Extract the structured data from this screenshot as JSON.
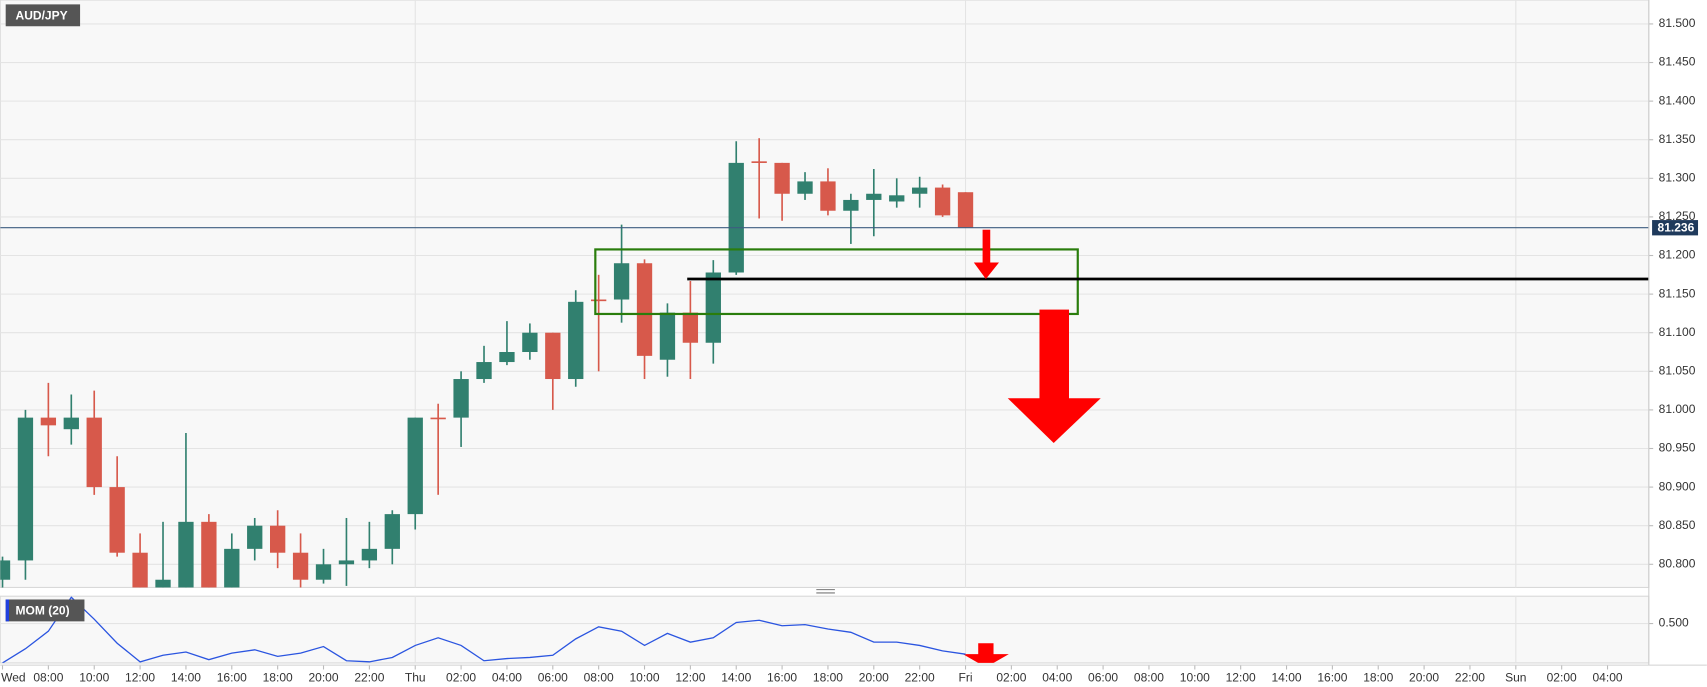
{
  "chart_data": {
    "type": "candlestick",
    "title": "AUD/JPY",
    "x": [
      6,
      7,
      8,
      9,
      10,
      11,
      12,
      13,
      14,
      15,
      16,
      17,
      18,
      19,
      20,
      21,
      22,
      23,
      24,
      25,
      26,
      27,
      28,
      29,
      30,
      31,
      32,
      33,
      34,
      35,
      36,
      37,
      38,
      39,
      40,
      41,
      42,
      43,
      44,
      45,
      46,
      47,
      48
    ],
    "open": [
      80.78,
      80.805,
      80.99,
      80.975,
      80.99,
      80.9,
      80.815,
      80.77,
      80.77,
      80.855,
      80.77,
      80.82,
      80.85,
      80.815,
      80.78,
      80.8,
      80.805,
      80.82,
      80.865,
      80.99,
      80.99,
      81.04,
      81.062,
      81.075,
      81.1,
      81.04,
      81.143,
      81.143,
      81.19,
      81.065,
      81.126,
      81.087,
      81.178,
      81.322,
      81.32,
      81.28,
      81.296,
      81.258,
      81.272,
      81.27,
      81.28,
      81.288,
      81.282
    ],
    "high": [
      80.81,
      81.0,
      81.035,
      81.02,
      81.025,
      80.94,
      80.84,
      80.855,
      80.97,
      80.865,
      80.84,
      80.86,
      80.87,
      80.84,
      80.82,
      80.86,
      80.855,
      80.87,
      80.99,
      81.008,
      81.05,
      81.083,
      81.115,
      81.112,
      81.1,
      81.155,
      81.175,
      81.24,
      81.195,
      81.138,
      81.167,
      81.194,
      81.348,
      81.352,
      81.32,
      81.308,
      81.313,
      81.28,
      81.312,
      81.3,
      81.302,
      81.292,
      81.282
    ],
    "low": [
      80.77,
      80.78,
      80.94,
      80.955,
      80.89,
      80.81,
      80.77,
      80.76,
      80.76,
      80.76,
      80.76,
      80.805,
      80.795,
      80.77,
      80.775,
      80.772,
      80.795,
      80.8,
      80.845,
      80.89,
      80.952,
      81.035,
      81.058,
      81.065,
      81.0,
      81.03,
      81.05,
      81.113,
      81.04,
      81.043,
      81.04,
      81.06,
      81.175,
      81.248,
      81.245,
      81.272,
      81.252,
      81.215,
      81.225,
      81.262,
      81.262,
      81.25,
      81.236
    ],
    "close": [
      80.805,
      80.99,
      80.98,
      80.99,
      80.9,
      80.815,
      80.77,
      80.78,
      80.855,
      80.77,
      80.82,
      80.85,
      80.815,
      80.78,
      80.8,
      80.805,
      80.82,
      80.865,
      80.99,
      80.988,
      81.04,
      81.062,
      81.075,
      81.1,
      81.04,
      81.14,
      81.142,
      81.19,
      81.07,
      81.126,
      81.087,
      81.178,
      81.32,
      81.32,
      81.28,
      81.296,
      81.258,
      81.272,
      81.28,
      81.278,
      81.288,
      81.252,
      81.236
    ],
    "up_color": "#31806f",
    "down_color": "#d7594b",
    "xlim": [
      5.9,
      77.8
    ],
    "xticks": [
      {
        "value": 6,
        "label": "Wed"
      },
      {
        "value": 8,
        "label": "08:00"
      },
      {
        "value": 10,
        "label": "10:00"
      },
      {
        "value": 12,
        "label": "12:00"
      },
      {
        "value": 14,
        "label": "14:00"
      },
      {
        "value": 16,
        "label": "16:00"
      },
      {
        "value": 18,
        "label": "18:00"
      },
      {
        "value": 20,
        "label": "20:00"
      },
      {
        "value": 22,
        "label": "22:00"
      },
      {
        "value": 24,
        "label": "Thu"
      },
      {
        "value": 26,
        "label": "02:00"
      },
      {
        "value": 28,
        "label": "04:00"
      },
      {
        "value": 30,
        "label": "06:00"
      },
      {
        "value": 32,
        "label": "08:00"
      },
      {
        "value": 34,
        "label": "10:00"
      },
      {
        "value": 36,
        "label": "12:00"
      },
      {
        "value": 38,
        "label": "14:00"
      },
      {
        "value": 40,
        "label": "16:00"
      },
      {
        "value": 42,
        "label": "18:00"
      },
      {
        "value": 44,
        "label": "20:00"
      },
      {
        "value": 46,
        "label": "22:00"
      },
      {
        "value": 48,
        "label": "Fri"
      },
      {
        "value": 50,
        "label": "02:00"
      },
      {
        "value": 52,
        "label": "04:00"
      },
      {
        "value": 54,
        "label": "06:00"
      },
      {
        "value": 56,
        "label": "08:00"
      },
      {
        "value": 58,
        "label": "10:00"
      },
      {
        "value": 60,
        "label": "12:00"
      },
      {
        "value": 62,
        "label": "14:00"
      },
      {
        "value": 64,
        "label": "16:00"
      },
      {
        "value": 66,
        "label": "18:00"
      },
      {
        "value": 68,
        "label": "20:00"
      },
      {
        "value": 70,
        "label": "22:00"
      },
      {
        "value": 72,
        "label": "Sun"
      },
      {
        "value": 74,
        "label": "02:00"
      },
      {
        "value": 76,
        "label": "04:00"
      }
    ],
    "xgrid": [
      24,
      48,
      72
    ],
    "ylim": [
      80.77,
      81.531
    ],
    "yticks": [
      {
        "value": 80.8,
        "label": "80.800"
      },
      {
        "value": 80.85,
        "label": "80.850"
      },
      {
        "value": 80.9,
        "label": "80.900"
      },
      {
        "value": 80.95,
        "label": "80.950"
      },
      {
        "value": 81.0,
        "label": "81.000"
      },
      {
        "value": 81.05,
        "label": "81.050"
      },
      {
        "value": 81.1,
        "label": "81.100"
      },
      {
        "value": 81.15,
        "label": "81.150"
      },
      {
        "value": 81.2,
        "label": "81.200"
      },
      {
        "value": 81.25,
        "label": "81.250"
      },
      {
        "value": 81.3,
        "label": "81.300"
      },
      {
        "value": 81.35,
        "label": "81.350"
      },
      {
        "value": 81.4,
        "label": "81.400"
      },
      {
        "value": 81.45,
        "label": "81.450"
      },
      {
        "value": 81.5,
        "label": "81.500"
      }
    ],
    "grid": true,
    "last_price": {
      "value": 81.236,
      "label": "81.236"
    },
    "indicator": {
      "name": "MOM (20)",
      "color": "#2b55e0",
      "values": [
        0.14,
        0.27,
        0.43,
        0.74,
        0.54,
        0.32,
        0.15,
        0.21,
        0.24,
        0.17,
        0.23,
        0.26,
        0.2,
        0.23,
        0.29,
        0.16,
        0.15,
        0.19,
        0.3,
        0.37,
        0.3,
        0.16,
        0.18,
        0.19,
        0.21,
        0.36,
        0.47,
        0.43,
        0.3,
        0.41,
        0.33,
        0.37,
        0.51,
        0.53,
        0.48,
        0.49,
        0.45,
        0.42,
        0.33,
        0.33,
        0.3,
        0.25,
        0.22
      ],
      "ylim": [
        0.14,
        0.75
      ],
      "yticks": [
        {
          "value": 0.5,
          "label": "0.500"
        }
      ]
    }
  }
}
